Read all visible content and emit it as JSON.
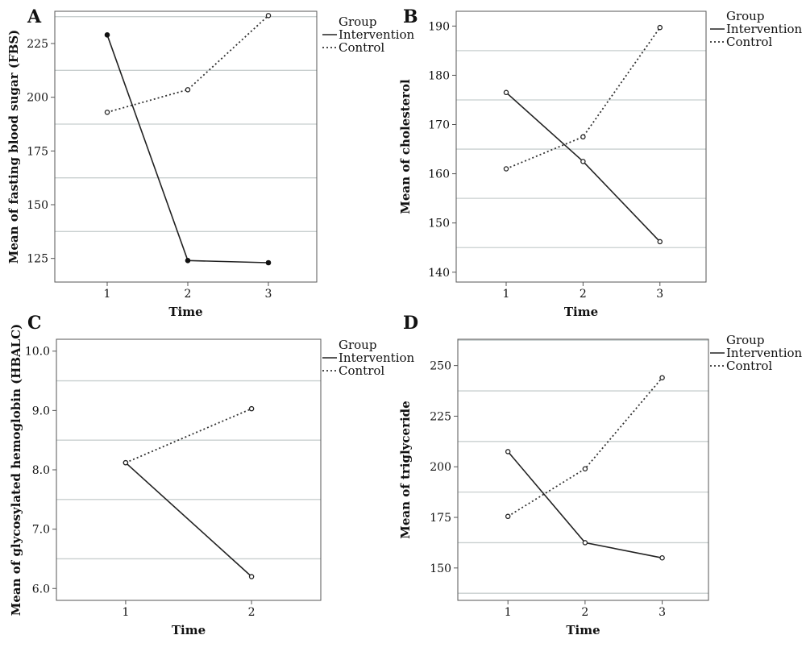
{
  "chart_data": [
    {
      "panel": "A",
      "type": "line",
      "xlabel": "Time",
      "ylabel": "Mean of fasting blood sugar (FBS)",
      "x": [
        1,
        2,
        3
      ],
      "xlim": [
        0.35,
        3.6
      ],
      "ylim": [
        114,
        240
      ],
      "yticks": [
        125,
        150,
        175,
        200,
        225
      ],
      "gridlines": [
        137.5,
        162.5,
        187.5,
        212.5,
        237.5
      ],
      "grid": true,
      "legend": {
        "title": "Group",
        "position": "right",
        "entries": [
          "Intervention",
          "Control"
        ]
      },
      "series": [
        {
          "name": "Intervention",
          "style": "solid",
          "marker": "filled",
          "values": [
            229,
            124,
            123
          ]
        },
        {
          "name": "Control",
          "style": "dotted",
          "marker": "open",
          "values": [
            193,
            203.5,
            238
          ]
        }
      ]
    },
    {
      "panel": "B",
      "type": "line",
      "xlabel": "Time",
      "ylabel": "Mean of cholesterol",
      "x": [
        1,
        2,
        3
      ],
      "xlim": [
        0.35,
        3.6
      ],
      "ylim": [
        138,
        193
      ],
      "yticks": [
        140,
        150,
        160,
        170,
        180,
        190
      ],
      "gridlines": [
        145,
        155,
        165,
        175,
        185
      ],
      "grid": true,
      "legend": {
        "title": "Group",
        "position": "right",
        "entries": [
          "Intervention",
          "Control"
        ]
      },
      "series": [
        {
          "name": "Intervention",
          "style": "solid",
          "marker": "open",
          "values": [
            176.5,
            162.5,
            146.2
          ]
        },
        {
          "name": "Control",
          "style": "dotted",
          "marker": "open",
          "values": [
            161,
            167.5,
            189.7
          ]
        }
      ]
    },
    {
      "panel": "C",
      "type": "line",
      "xlabel": "Time",
      "ylabel": "Mean of glycosylated hemoglobin (HBALC)",
      "x": [
        1,
        2
      ],
      "xlim": [
        0.45,
        2.55
      ],
      "ylim": [
        5.8,
        10.2
      ],
      "yticks": [
        6.0,
        7.0,
        8.0,
        9.0,
        10.0
      ],
      "gridlines": [
        6.5,
        7.5,
        8.5,
        9.5
      ],
      "grid": true,
      "legend": {
        "title": "Group",
        "position": "right",
        "entries": [
          "Intervention",
          "Control"
        ]
      },
      "series": [
        {
          "name": "Intervention",
          "style": "solid",
          "marker": "open",
          "values": [
            8.12,
            6.2
          ]
        },
        {
          "name": "Control",
          "style": "dotted",
          "marker": "open",
          "values": [
            8.12,
            9.03
          ]
        }
      ]
    },
    {
      "panel": "D",
      "type": "line",
      "xlabel": "Time",
      "ylabel": "Mean of triglyceride",
      "x": [
        1,
        2,
        3
      ],
      "xlim": [
        0.35,
        3.6
      ],
      "ylim": [
        134,
        263
      ],
      "yticks": [
        150,
        175,
        200,
        225,
        250
      ],
      "gridlines": [
        137.5,
        162.5,
        187.5,
        212.5,
        237.5,
        262.5
      ],
      "grid": true,
      "legend": {
        "title": "Group",
        "position": "right",
        "entries": [
          "Intervention",
          "Control"
        ]
      },
      "series": [
        {
          "name": "Intervention",
          "style": "solid",
          "marker": "open",
          "values": [
            207.5,
            162.5,
            155
          ]
        },
        {
          "name": "Control",
          "style": "dotted",
          "marker": "open",
          "values": [
            175.5,
            199,
            244
          ]
        }
      ]
    }
  ]
}
